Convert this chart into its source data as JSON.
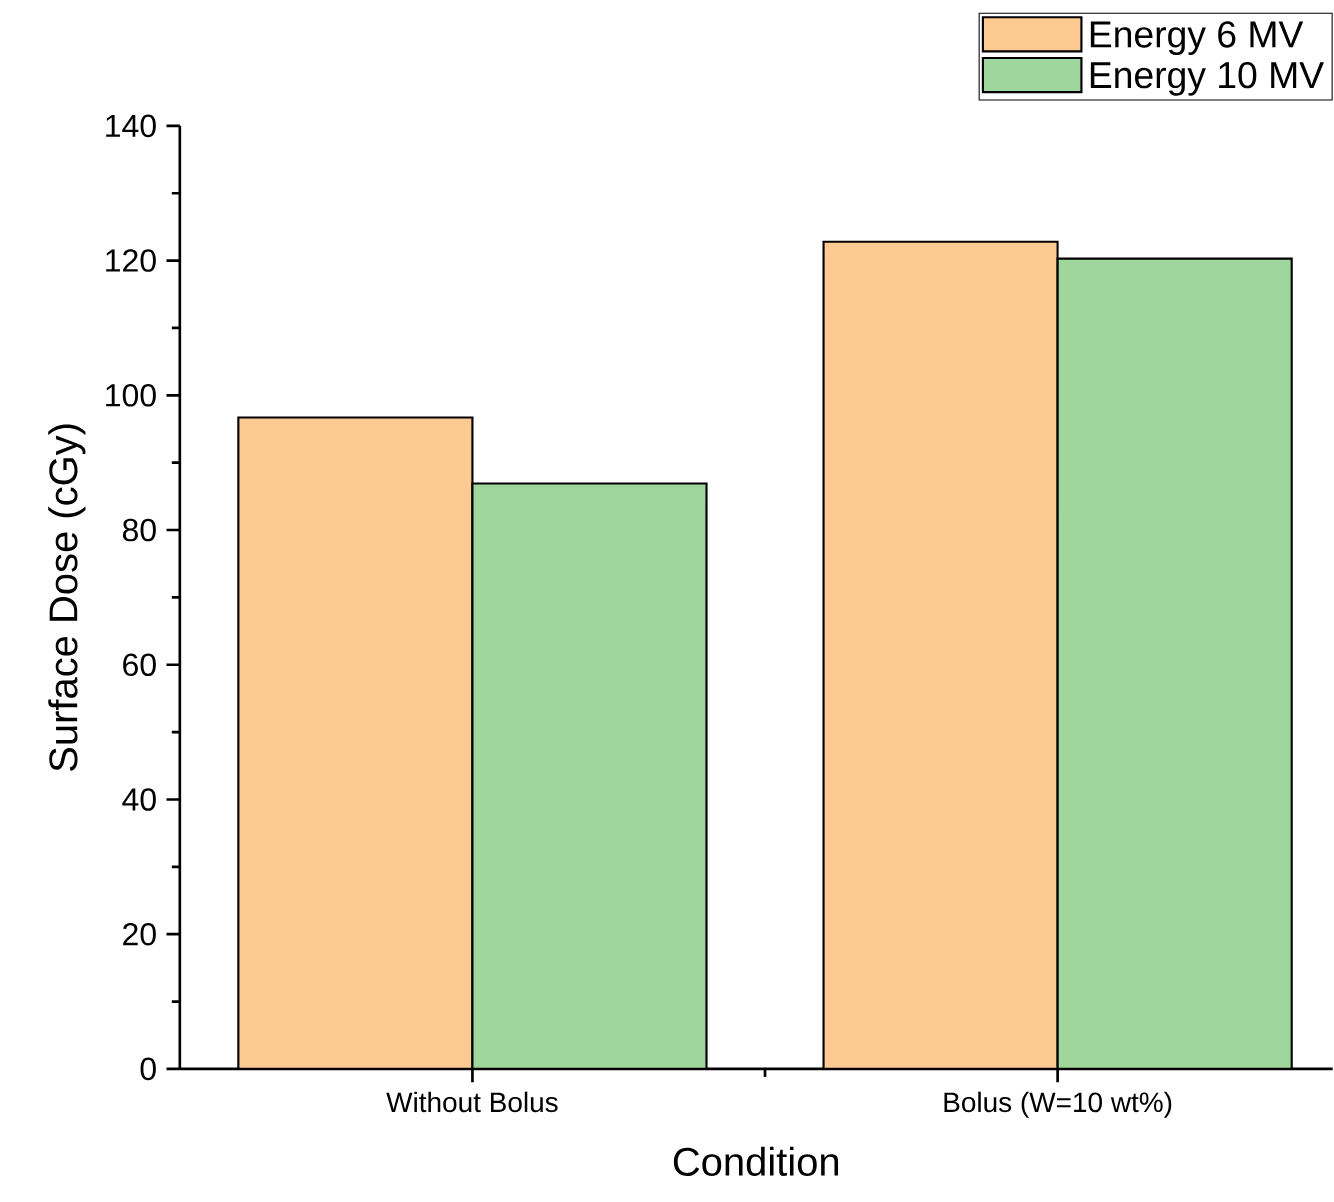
{
  "chart_data": {
    "type": "bar",
    "xlabel": "Condition",
    "ylabel": "Surface Dose (cGy)",
    "categories": [
      "Without Bolus",
      "Bolus (W=10 wt%)"
    ],
    "series": [
      {
        "name": "Energy 6 MV",
        "color": "#fdcb92",
        "values": [
          96.7,
          122.8
        ]
      },
      {
        "name": "Energy 10 MV",
        "color": "#9ed69b",
        "values": [
          86.9,
          120.3
        ]
      }
    ],
    "ylim": [
      0,
      140
    ],
    "yticks": [
      0,
      20,
      40,
      60,
      80,
      100,
      120,
      140
    ],
    "grid": false,
    "legend": "top right"
  }
}
